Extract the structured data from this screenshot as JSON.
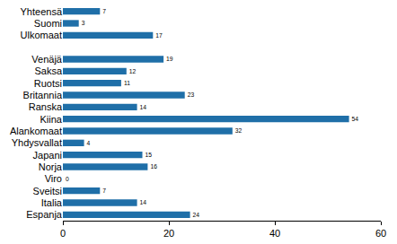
{
  "chart_data": {
    "type": "bar",
    "orientation": "horizontal",
    "categories": [
      "Yhteensä",
      "Suomi",
      "Ulkomaat",
      null,
      "Venäjä",
      "Saksa",
      "Ruotsi",
      "Britannia",
      "Ranska",
      "Kiina",
      "Alankomaat",
      "Yhdysvallat",
      "Japani",
      "Norja",
      "Viro",
      "Sveitsi",
      "Italia",
      "Espanja"
    ],
    "values": [
      7,
      3,
      17,
      null,
      19,
      12,
      11,
      23,
      14,
      54,
      32,
      4,
      15,
      16,
      0,
      7,
      14,
      24
    ],
    "color": "#1f6fa8",
    "xlim": [
      0,
      60
    ],
    "xticks": [
      0,
      20,
      40,
      60
    ],
    "grid": false,
    "data_labels": true
  }
}
